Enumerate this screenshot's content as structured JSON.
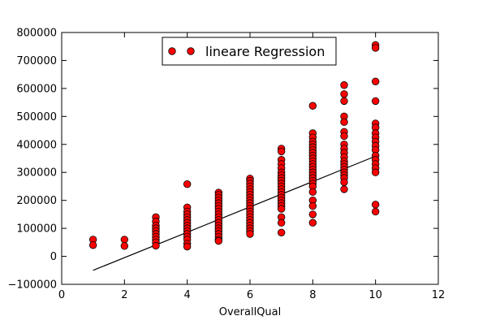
{
  "chart_data": {
    "type": "scatter",
    "xlabel": "OverallQual",
    "ylabel": "",
    "title": "",
    "xlim": [
      0,
      12
    ],
    "ylim": [
      -100000,
      800000
    ],
    "xticks": [
      0,
      2,
      4,
      6,
      8,
      10,
      12
    ],
    "yticks": [
      -100000,
      0,
      100000,
      200000,
      300000,
      400000,
      500000,
      600000,
      700000,
      800000
    ],
    "xtick_labels": [
      "0",
      "2",
      "4",
      "6",
      "8",
      "10",
      "12"
    ],
    "ytick_labels": [
      "−100000",
      "0",
      "100000",
      "200000",
      "300000",
      "400000",
      "500000",
      "600000",
      "700000",
      "800000"
    ],
    "grid": false,
    "legend": {
      "position": "top-center",
      "entries": [
        "lineare Regression"
      ]
    },
    "colors": {
      "points": "#ff0000",
      "point_edge": "#000000",
      "line": "#000000"
    },
    "series": [
      {
        "name": "lineare Regression",
        "kind": "scatter",
        "x": [
          1,
          1,
          2,
          2,
          3,
          3,
          3,
          3,
          3,
          3,
          3,
          3,
          3,
          3,
          4,
          4,
          4,
          4,
          4,
          4,
          4,
          4,
          4,
          4,
          4,
          4,
          4,
          4,
          4,
          5,
          5,
          5,
          5,
          5,
          5,
          5,
          5,
          5,
          5,
          5,
          5,
          5,
          5,
          5,
          5,
          5,
          5,
          5,
          6,
          6,
          6,
          6,
          6,
          6,
          6,
          6,
          6,
          6,
          6,
          6,
          6,
          6,
          6,
          6,
          6,
          6,
          6,
          6,
          6,
          7,
          7,
          7,
          7,
          7,
          7,
          7,
          7,
          7,
          7,
          7,
          7,
          7,
          7,
          7,
          7,
          7,
          7,
          7,
          7,
          7,
          7,
          8,
          8,
          8,
          8,
          8,
          8,
          8,
          8,
          8,
          8,
          8,
          8,
          8,
          8,
          8,
          8,
          8,
          8,
          8,
          8,
          8,
          8,
          8,
          8,
          8,
          9,
          9,
          9,
          9,
          9,
          9,
          9,
          9,
          9,
          9,
          9,
          9,
          9,
          9,
          9,
          9,
          9,
          9,
          9,
          9,
          10,
          10,
          10,
          10,
          10,
          10,
          10,
          10,
          10,
          10,
          10,
          10,
          10,
          10,
          10,
          10,
          10,
          10
        ],
        "y": [
          60000,
          40000,
          60000,
          37000,
          140000,
          125000,
          110000,
          100000,
          90000,
          80000,
          70000,
          60000,
          50000,
          38000,
          258000,
          175000,
          160000,
          150000,
          140000,
          130000,
          120000,
          110000,
          100000,
          90000,
          80000,
          70000,
          60000,
          45000,
          35000,
          228000,
          220000,
          210000,
          200000,
          190000,
          180000,
          170000,
          160000,
          150000,
          140000,
          130000,
          120000,
          110000,
          100000,
          90000,
          80000,
          70000,
          60000,
          55000,
          278000,
          270000,
          260000,
          250000,
          240000,
          230000,
          220000,
          210000,
          200000,
          190000,
          180000,
          170000,
          160000,
          150000,
          140000,
          130000,
          120000,
          110000,
          100000,
          90000,
          80000,
          385000,
          375000,
          345000,
          330000,
          315000,
          300000,
          290000,
          280000,
          270000,
          260000,
          250000,
          240000,
          230000,
          220000,
          210000,
          200000,
          190000,
          180000,
          170000,
          140000,
          120000,
          85000,
          538000,
          440000,
          425000,
          410000,
          400000,
          390000,
          380000,
          370000,
          360000,
          350000,
          340000,
          330000,
          320000,
          310000,
          300000,
          290000,
          280000,
          270000,
          260000,
          250000,
          230000,
          200000,
          180000,
          150000,
          120000,
          612000,
          580000,
          555000,
          500000,
          480000,
          445000,
          430000,
          400000,
          385000,
          370000,
          355000,
          340000,
          330000,
          320000,
          310000,
          300000,
          290000,
          280000,
          265000,
          240000,
          755000,
          745000,
          625000,
          555000,
          475000,
          460000,
          440000,
          425000,
          410000,
          395000,
          380000,
          360000,
          345000,
          330000,
          315000,
          300000,
          185000,
          160000
        ]
      },
      {
        "name": "",
        "kind": "line",
        "x": [
          1,
          10
        ],
        "y": [
          -50000,
          358000
        ]
      }
    ]
  }
}
